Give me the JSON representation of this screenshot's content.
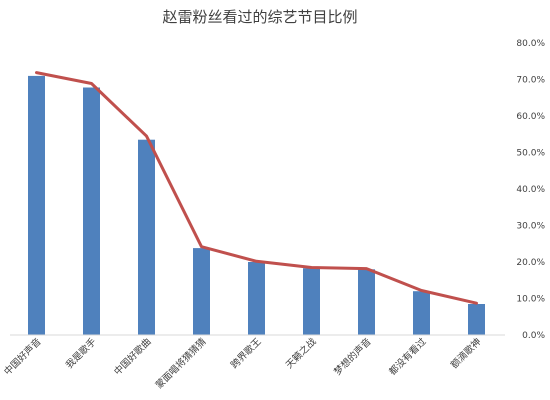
{
  "chart_data": {
    "type": "bar",
    "title": "赵雷粉丝看过的综艺节目比例",
    "categories": [
      "中国好声音",
      "我是歌手",
      "中国好歌曲",
      "蒙面唱将猜猜猜",
      "跨界歌王",
      "天籁之战",
      "梦想的声音",
      "都没有看过",
      "额滴歌神"
    ],
    "series": [
      {
        "type": "bar",
        "values": [
          71.0,
          67.8,
          53.5,
          23.8,
          20.0,
          18.3,
          18.0,
          12.0,
          8.5
        ]
      },
      {
        "type": "line",
        "values": [
          71.9,
          68.9,
          54.5,
          24.2,
          20.2,
          18.5,
          18.2,
          12.2,
          8.7
        ]
      }
    ],
    "yaxis": {
      "position": "right",
      "min": 0,
      "max": 80,
      "step": 10,
      "tick_labels": [
        "0.0%",
        "10.0%",
        "20.0%",
        "30.0%",
        "40.0%",
        "50.0%",
        "60.0%",
        "70.0%",
        "80.0%"
      ]
    },
    "grid": false,
    "legend": false,
    "colors": {
      "bar": "#4f81bd",
      "line": "#c0504d",
      "axis": "#d9d9d9",
      "text": "#404040"
    }
  }
}
